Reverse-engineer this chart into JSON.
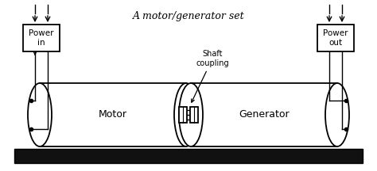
{
  "title": "A motor/generator set",
  "bg_color": "#ffffff",
  "line_color": "#000000",
  "base_color": "#111111",
  "motor_label": "Motor",
  "generator_label": "Generator",
  "power_in_label": "Power\nin",
  "power_out_label": "Power\nout",
  "shaft_label": "Shaft\ncoupling",
  "fig_width": 4.74,
  "fig_height": 2.16,
  "dpi": 100
}
